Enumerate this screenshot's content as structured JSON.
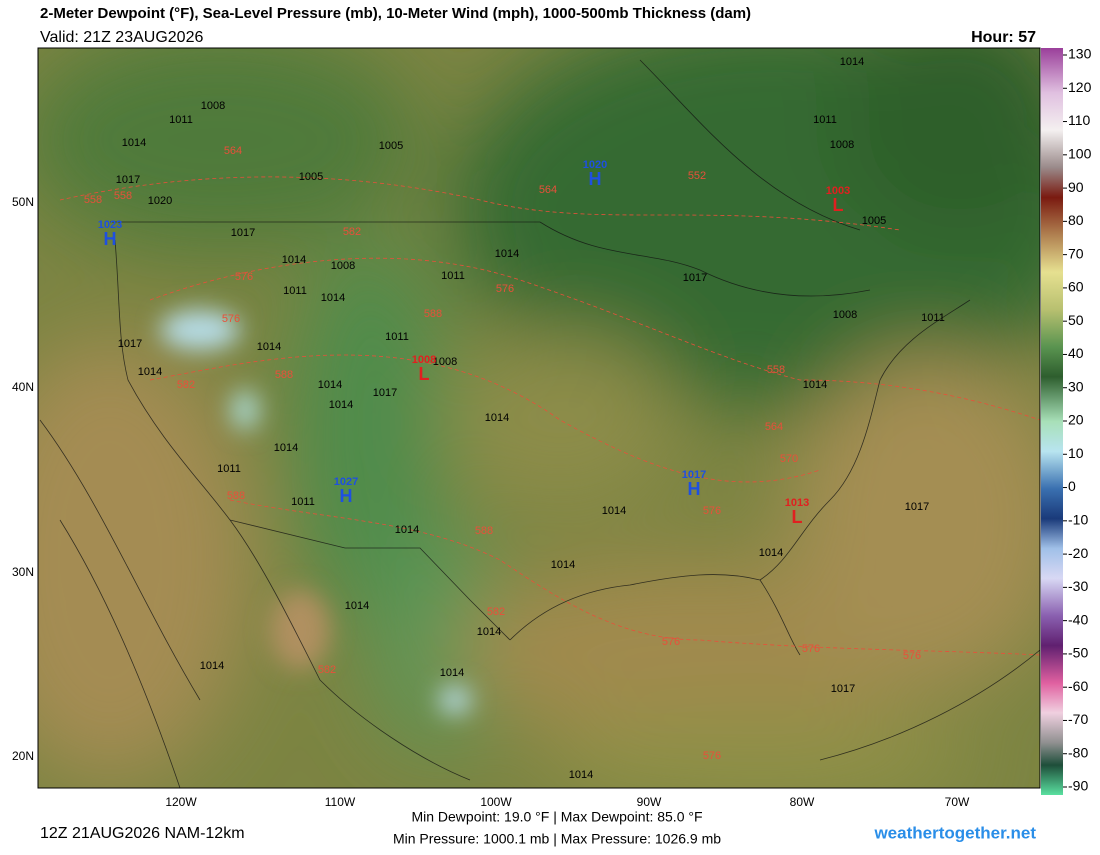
{
  "header": {
    "title": "2-Meter Dewpoint (°F), Sea-Level Pressure (mb), 10-Meter Wind (mph), 1000-500mb Thickness (dam)",
    "valid": "Valid: 21Z 23AUG2026",
    "hour": "Hour: 57"
  },
  "map": {
    "lat_labels": [
      "50N",
      "40N",
      "30N",
      "20N"
    ],
    "lon_labels": [
      "120W",
      "110W",
      "100W",
      "90W",
      "80W",
      "70W"
    ],
    "highs": [
      {
        "symbol": "H",
        "pressure": "1023"
      },
      {
        "symbol": "H",
        "pressure": "1020"
      },
      {
        "symbol": "H",
        "pressure": "1027"
      },
      {
        "symbol": "H",
        "pressure": "1017"
      }
    ],
    "lows": [
      {
        "symbol": "L",
        "pressure": "1003"
      },
      {
        "symbol": "L",
        "pressure": "1008"
      },
      {
        "symbol": "L",
        "pressure": "1013"
      }
    ],
    "isobar_labels": [
      "1008",
      "1011",
      "1014",
      "1005",
      "1005",
      "1017",
      "1020",
      "1017",
      "1014",
      "1008",
      "1011",
      "1014",
      "1017",
      "1011",
      "1008",
      "1005",
      "1008",
      "1011",
      "1014",
      "1014",
      "1011",
      "1014",
      "1011",
      "1008",
      "1017",
      "1014",
      "1014",
      "1014",
      "1017",
      "1014",
      "1014",
      "1014",
      "1011",
      "1011",
      "1014",
      "1014",
      "1014",
      "1014",
      "1017",
      "1014",
      "1014",
      "1014",
      "1014",
      "1017",
      "1014"
    ],
    "thickness_labels": [
      "564",
      "558",
      "558",
      "564",
      "552",
      "582",
      "576",
      "576",
      "576",
      "588",
      "582",
      "588",
      "558",
      "564",
      "570",
      "576",
      "588",
      "588",
      "582",
      "582",
      "576",
      "576",
      "576",
      "576"
    ]
  },
  "colorbar": {
    "ticks": [
      130,
      120,
      110,
      100,
      90,
      80,
      70,
      60,
      50,
      40,
      30,
      20,
      10,
      0,
      -10,
      -20,
      -30,
      -40,
      -50,
      -60,
      -70,
      -80,
      -90
    ]
  },
  "footer": {
    "run": "12Z 21AUG2026 NAM-12km",
    "dewpoint_range": "Min Dewpoint:  19.0 °F | Max Dewpoint:  85.0 °F",
    "pressure_range": "Min Pressure: 1000.1 mb | Max Pressure: 1026.9 mb",
    "site": "weathertogether.net"
  }
}
